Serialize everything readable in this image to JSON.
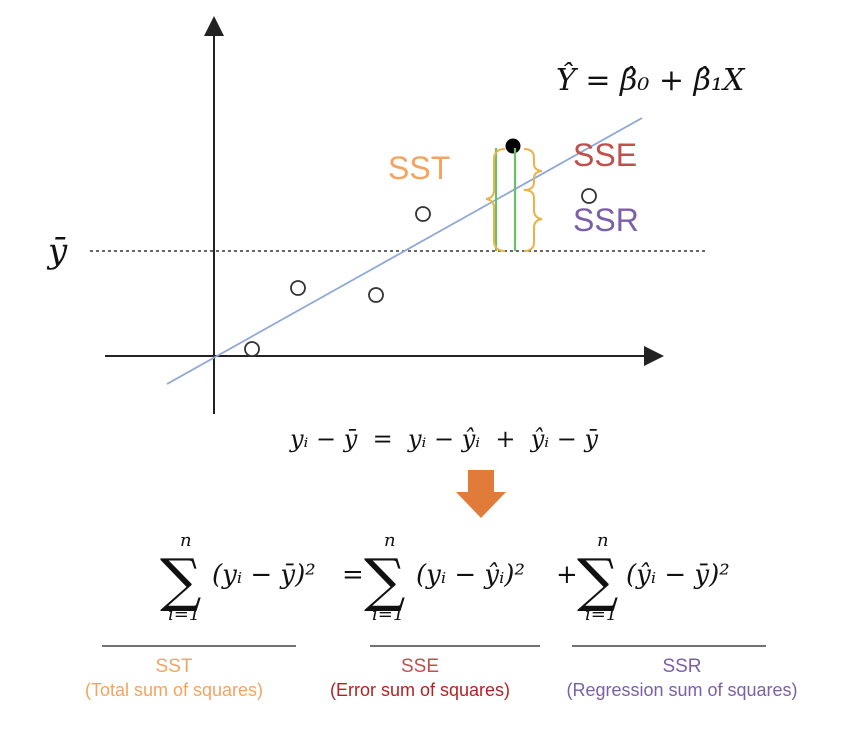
{
  "diagram": {
    "regression_equation": "Ŷ = β̂₀ + β̂₁X",
    "ybar_label": "ȳ",
    "labels": {
      "sst": "SST",
      "sse": "SSE",
      "ssr": "SSR"
    },
    "colors": {
      "sst": "#f4a460",
      "sse": "#c0504d",
      "ssr": "#7b5fa8",
      "regression_line": "#8fa8d8",
      "total_bar": "#6abf69",
      "brace": "#e8b44a",
      "arrow": "#e07b39",
      "axis": "#222222"
    }
  },
  "equations": {
    "deviation": "yᵢ − ȳ  =  yᵢ − ŷᵢ  +  ŷᵢ − ȳ",
    "sum_upper": "n",
    "sum_lower": "i=1",
    "term_total": "(yᵢ − ȳ)²",
    "term_error": "(yᵢ − ŷᵢ)²",
    "term_regression": "(ŷᵢ − ȳ)²",
    "equals": "=",
    "plus": "+"
  },
  "legend": {
    "sst": {
      "abbr": "SST",
      "desc": "(Total sum of squares)"
    },
    "sse": {
      "abbr": "SSE",
      "desc": "(Error sum of squares)"
    },
    "ssr": {
      "abbr": "SSR",
      "desc": "(Regression sum of squares)"
    }
  }
}
